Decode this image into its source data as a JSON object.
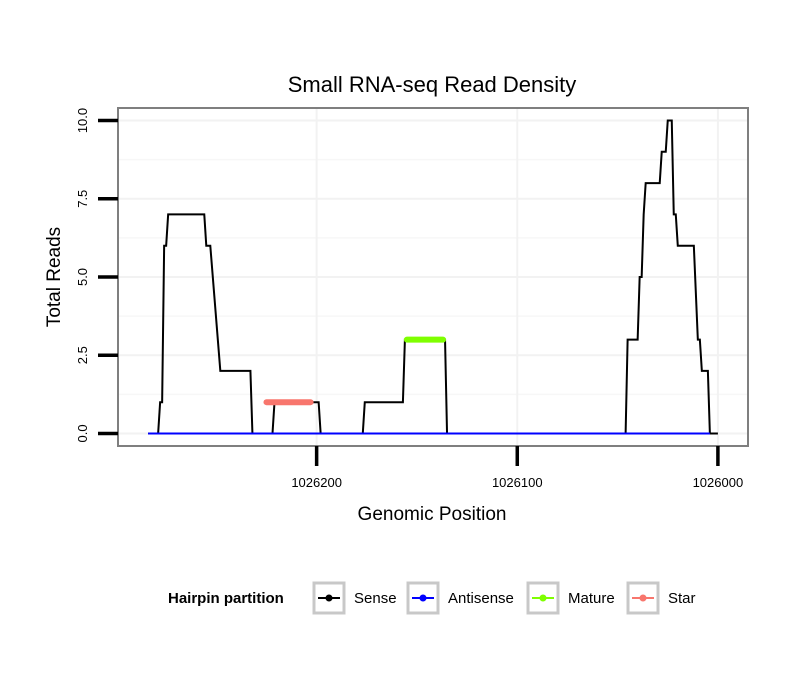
{
  "chart_data": {
    "type": "line",
    "title": "Small RNA-seq Read Density",
    "xlabel": "Genomic Position",
    "ylabel": "Total Reads",
    "xlim": [
      1026299,
      1025985
    ],
    "ylim": [
      -0.4,
      10.4
    ],
    "x_reversed": true,
    "xticks": [
      1026200,
      1026100,
      1026000
    ],
    "xtick_labels": [
      "1026200",
      "1026100",
      "1026000"
    ],
    "yticks": [
      0,
      2.5,
      5,
      7.5,
      10
    ],
    "ytick_labels": [
      "0.0",
      "2.5",
      "5.0",
      "7.5",
      "10.0"
    ],
    "grid": true,
    "legend": {
      "title": "Hairpin partition",
      "position": "bottom",
      "entries": [
        "Sense",
        "Antisense",
        "Mature",
        "Star"
      ]
    },
    "series": [
      {
        "name": "Sense",
        "color": "#000000",
        "points": [
          [
            1026284,
            0
          ],
          [
            1026279,
            0
          ],
          [
            1026278,
            1
          ],
          [
            1026277,
            1
          ],
          [
            1026276,
            6
          ],
          [
            1026275,
            6
          ],
          [
            1026274,
            7
          ],
          [
            1026256,
            7
          ],
          [
            1026255,
            6
          ],
          [
            1026253,
            6
          ],
          [
            1026248,
            2
          ],
          [
            1026236,
            2
          ],
          [
            1026233,
            2
          ],
          [
            1026232,
            0
          ],
          [
            1026222,
            0
          ],
          [
            1026221,
            1
          ],
          [
            1026199,
            1
          ],
          [
            1026198,
            0
          ],
          [
            1026177,
            0
          ],
          [
            1026176,
            1
          ],
          [
            1026157,
            1
          ],
          [
            1026156,
            3
          ],
          [
            1026136,
            3
          ],
          [
            1026135,
            0
          ],
          [
            1026046,
            0
          ],
          [
            1026045,
            3
          ],
          [
            1026040,
            3
          ],
          [
            1026039,
            5
          ],
          [
            1026038,
            5
          ],
          [
            1026037,
            7
          ],
          [
            1026036,
            8
          ],
          [
            1026029,
            8
          ],
          [
            1026028,
            9
          ],
          [
            1026026,
            9
          ],
          [
            1026025,
            10
          ],
          [
            1026023,
            10
          ],
          [
            1026022,
            7
          ],
          [
            1026021,
            7
          ],
          [
            1026020,
            6
          ],
          [
            1026012,
            6
          ],
          [
            1026010,
            3
          ],
          [
            1026009,
            3
          ],
          [
            1026008,
            2
          ],
          [
            1026005,
            2
          ],
          [
            1026004,
            0
          ],
          [
            1026000,
            0
          ]
        ]
      },
      {
        "name": "Antisense",
        "color": "#0000ff",
        "points": [
          [
            1026284,
            0
          ],
          [
            1026004,
            0
          ]
        ]
      },
      {
        "name": "Mature",
        "color": "#7fff00",
        "points": [
          [
            1026155,
            3
          ],
          [
            1026137,
            3
          ]
        ]
      },
      {
        "name": "Star",
        "color": "#f8766d",
        "points": [
          [
            1026225,
            1
          ],
          [
            1026203,
            1
          ]
        ]
      }
    ]
  }
}
